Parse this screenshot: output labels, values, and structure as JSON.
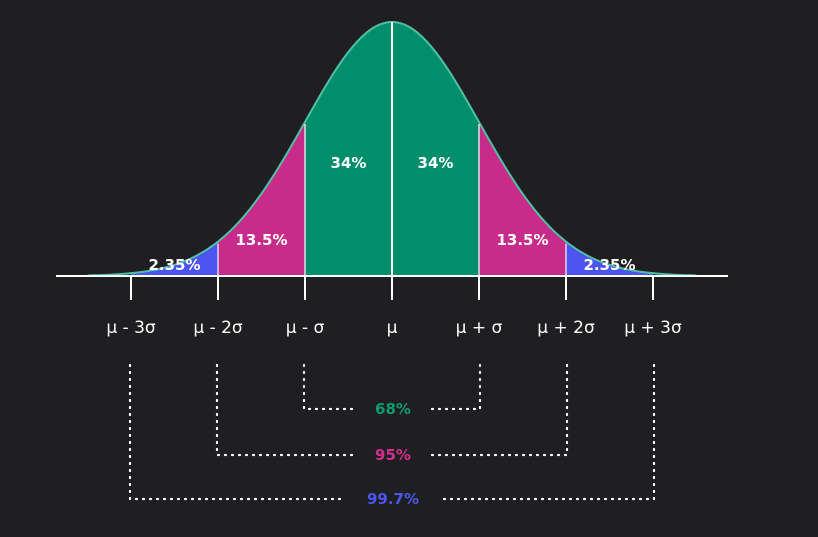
{
  "chart_data": {
    "type": "area",
    "title": "",
    "xlabel": "",
    "ylabel": "",
    "x_tick_labels": [
      "μ - 3σ",
      "μ - 2σ",
      "μ - σ",
      "μ",
      "μ + σ",
      "μ + 2σ",
      "μ + 3σ"
    ],
    "x_tick_values": [
      -3,
      -2,
      -1,
      0,
      1,
      2,
      3
    ],
    "x_range": [
      -3.5,
      3.5
    ],
    "regions": [
      {
        "from": -3,
        "to": -2,
        "label": "2.35%",
        "value": 2.35,
        "color": "#4b53f0"
      },
      {
        "from": -2,
        "to": -1,
        "label": "13.5%",
        "value": 13.5,
        "color": "#c82c8a"
      },
      {
        "from": -1,
        "to": 0,
        "label": "34%",
        "value": 34,
        "color": "#008e6b"
      },
      {
        "from": 0,
        "to": 1,
        "label": "34%",
        "value": 34,
        "color": "#008e6b"
      },
      {
        "from": 1,
        "to": 2,
        "label": "13.5%",
        "value": 13.5,
        "color": "#c82c8a"
      },
      {
        "from": 2,
        "to": 3,
        "label": "2.35%",
        "value": 2.35,
        "color": "#4b53f0"
      }
    ],
    "curve_color": "#4fc0a6",
    "grid": false,
    "brackets": [
      {
        "from": -1,
        "to": 1,
        "label": "68%",
        "color": "#0a9a72"
      },
      {
        "from": -2,
        "to": 2,
        "label": "95%",
        "color": "#d0308f"
      },
      {
        "from": -3,
        "to": 3,
        "label": "99.7%",
        "color": "#4d55f0"
      }
    ]
  },
  "colors": {
    "background": "#1f1f22",
    "axis": "#ffffff",
    "text": "#ffffff"
  }
}
